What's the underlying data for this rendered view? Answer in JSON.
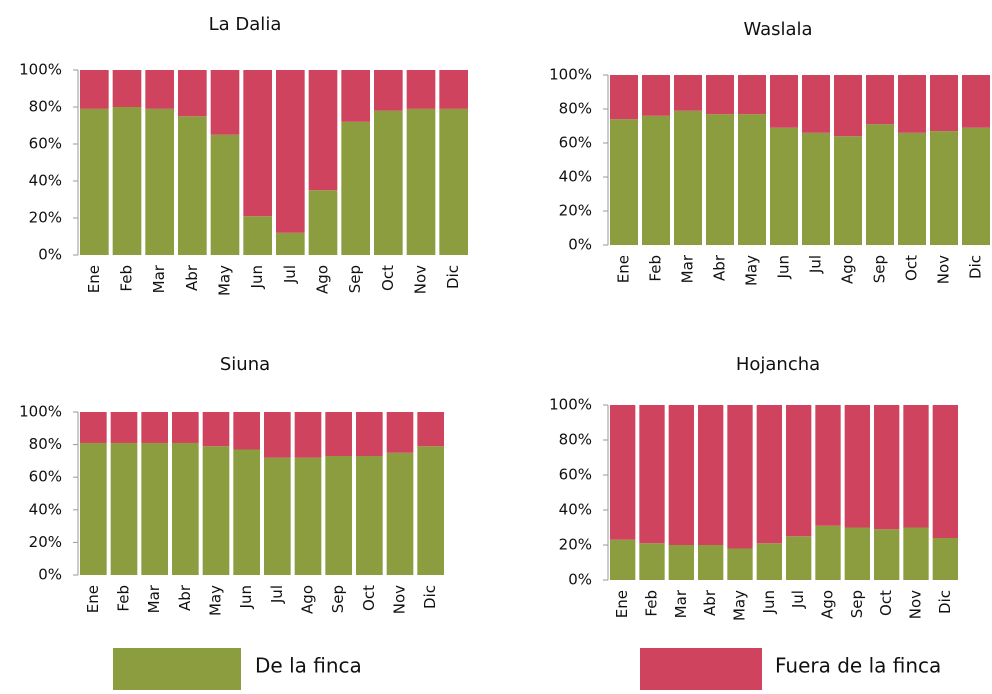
{
  "chart_data": [
    {
      "type": "bar",
      "stacked": true,
      "title": "La Dalia",
      "categories": [
        "Ene",
        "Feb",
        "Mar",
        "Abr",
        "May",
        "Jun",
        "Jul",
        "Ago",
        "Sep",
        "Oct",
        "Nov",
        "Dic"
      ],
      "series": [
        {
          "color": "#8c9d3f",
          "values": [
            79,
            80,
            79,
            75,
            65,
            21,
            12,
            35,
            72,
            78,
            79,
            79
          ]
        },
        {
          "color": "#d0435f",
          "values": [
            21,
            20,
            21,
            25,
            35,
            79,
            88,
            65,
            28,
            22,
            21,
            21
          ]
        }
      ],
      "ylim": [
        0,
        100
      ],
      "yticks": [
        {
          "value": 0,
          "label": "0%"
        },
        {
          "value": 20,
          "label": "20%"
        },
        {
          "value": 40,
          "label": "40%"
        },
        {
          "value": 60,
          "label": "60%"
        },
        {
          "value": 80,
          "label": "80%"
        },
        {
          "value": 100,
          "label": "100%"
        }
      ]
    },
    {
      "type": "bar",
      "stacked": true,
      "title": "Waslala",
      "categories": [
        "Ene",
        "Feb",
        "Mar",
        "Abr",
        "May",
        "Jun",
        "Jul",
        "Ago",
        "Sep",
        "Oct",
        "Nov",
        "Dic"
      ],
      "series": [
        {
          "color": "#8c9d3f",
          "values": [
            74,
            76,
            79,
            77,
            77,
            69,
            66,
            64,
            71,
            66,
            67,
            69
          ]
        },
        {
          "color": "#d0435f",
          "values": [
            26,
            24,
            21,
            23,
            23,
            31,
            34,
            36,
            29,
            34,
            33,
            31
          ]
        }
      ],
      "ylim": [
        0,
        100
      ],
      "yticks": [
        {
          "value": 0,
          "label": "0%"
        },
        {
          "value": 20,
          "label": "20%"
        },
        {
          "value": 40,
          "label": "40%"
        },
        {
          "value": 60,
          "label": "60%"
        },
        {
          "value": 80,
          "label": "80%"
        },
        {
          "value": 100,
          "label": "100%"
        }
      ]
    },
    {
      "type": "bar",
      "stacked": true,
      "title": "Siuna",
      "categories": [
        "Ene",
        "Feb",
        "Mar",
        "Abr",
        "May",
        "Jun",
        "Jul",
        "Ago",
        "Sep",
        "Oct",
        "Nov",
        "Dic"
      ],
      "series": [
        {
          "color": "#8c9d3f",
          "values": [
            81,
            81,
            81,
            81,
            79,
            77,
            72,
            72,
            73,
            73,
            75,
            79
          ]
        },
        {
          "color": "#d0435f",
          "values": [
            19,
            19,
            19,
            19,
            21,
            23,
            28,
            28,
            27,
            27,
            25,
            21
          ]
        }
      ],
      "ylim": [
        0,
        100
      ],
      "yticks": [
        {
          "value": 0,
          "label": "0%"
        },
        {
          "value": 20,
          "label": "20%"
        },
        {
          "value": 40,
          "label": "40%"
        },
        {
          "value": 60,
          "label": "60%"
        },
        {
          "value": 80,
          "label": "80%"
        },
        {
          "value": 100,
          "label": "100%"
        }
      ]
    },
    {
      "type": "bar",
      "stacked": true,
      "title": "Hojancha",
      "categories": [
        "Ene",
        "Feb",
        "Mar",
        "Abr",
        "May",
        "Jun",
        "Jul",
        "Ago",
        "Sep",
        "Oct",
        "Nov",
        "Dic"
      ],
      "series": [
        {
          "color": "#8c9d3f",
          "values": [
            23,
            21,
            20,
            20,
            18,
            21,
            25,
            31,
            30,
            29,
            30,
            24
          ]
        },
        {
          "color": "#d0435f",
          "values": [
            77,
            79,
            80,
            80,
            82,
            79,
            75,
            69,
            70,
            71,
            70,
            76
          ]
        }
      ],
      "ylim": [
        0,
        100
      ],
      "yticks": [
        {
          "value": 0,
          "label": "0%"
        },
        {
          "value": 20,
          "label": "20%"
        },
        {
          "value": 40,
          "label": "40%"
        },
        {
          "value": 60,
          "label": "60%"
        },
        {
          "value": 80,
          "label": "80%"
        },
        {
          "value": 100,
          "label": "100%"
        }
      ]
    }
  ],
  "legend": [
    {
      "name": "De la finca",
      "color": "#8c9d3f"
    },
    {
      "name": "Fuera de la finca",
      "color": "#d0435f"
    }
  ]
}
